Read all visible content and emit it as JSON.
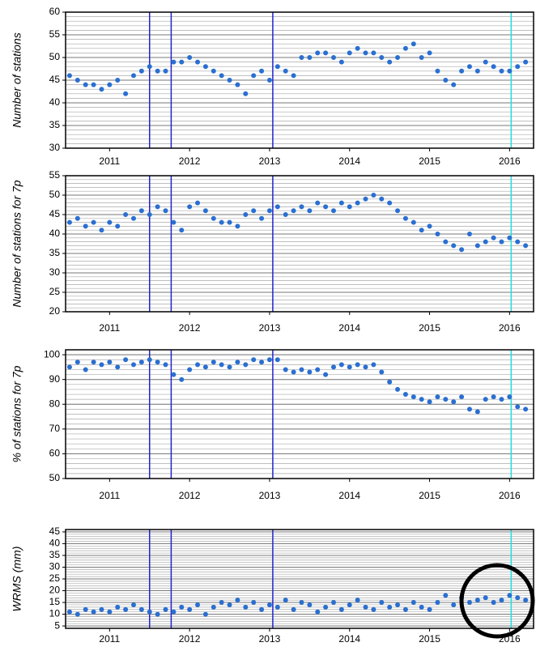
{
  "chart_data": [
    {
      "type": "scatter",
      "ylabel": "Number of stations",
      "color": "#2a6fd1",
      "x": [
        2011.0,
        2011.1,
        2011.2,
        2011.3,
        2011.4,
        2011.5,
        2011.6,
        2011.7,
        2011.8,
        2011.9,
        2012.0,
        2012.1,
        2012.2,
        2012.3,
        2012.4,
        2012.5,
        2012.6,
        2012.7,
        2012.8,
        2012.9,
        2013.0,
        2013.1,
        2013.2,
        2013.3,
        2013.4,
        2013.5,
        2013.6,
        2013.7,
        2013.8,
        2013.9,
        2014.0,
        2014.1,
        2014.2,
        2014.3,
        2014.4,
        2014.5,
        2014.6,
        2014.7,
        2014.8,
        2014.9,
        2015.0,
        2015.1,
        2015.2,
        2015.3,
        2015.4,
        2015.5,
        2015.6,
        2015.7,
        2015.8,
        2015.9,
        2016.0,
        2016.1,
        2016.2,
        2016.3,
        2016.4,
        2016.5,
        2016.6,
        2016.7
      ],
      "values": [
        46,
        45,
        44,
        44,
        43,
        44,
        45,
        42,
        46,
        47,
        48,
        47,
        47,
        49,
        49,
        50,
        49,
        48,
        47,
        46,
        45,
        44,
        42,
        46,
        47,
        45,
        48,
        47,
        46,
        50,
        50,
        51,
        51,
        50,
        49,
        51,
        52,
        51,
        51,
        50,
        49,
        50,
        52,
        53,
        50,
        51,
        47,
        45,
        44,
        47,
        48,
        47,
        49,
        48,
        47,
        47,
        48,
        49
      ],
      "xlim": [
        2010.95,
        2016.8
      ],
      "xticks": [
        {
          "value": 2011.5,
          "label": "2011"
        },
        {
          "value": 2012.5,
          "label": "2012"
        },
        {
          "value": 2013.5,
          "label": "2013"
        },
        {
          "value": 2014.5,
          "label": "2014"
        },
        {
          "value": 2015.5,
          "label": "2015"
        },
        {
          "value": 2016.5,
          "label": "2016"
        }
      ],
      "ylim": [
        30,
        60
      ],
      "yticks": [
        30,
        35,
        40,
        45,
        50,
        55,
        60
      ],
      "minor_grid_step": 1,
      "markers": [
        {
          "x": 2012.0,
          "color": "#2222cc"
        },
        {
          "x": 2012.27,
          "color": "#2222cc"
        },
        {
          "x": 2013.54,
          "color": "#2222cc"
        },
        {
          "x": 2016.52,
          "color": "#22dddd"
        }
      ]
    },
    {
      "type": "scatter",
      "ylabel": "Number of stations for 7p",
      "color": "#2a6fd1",
      "x": [
        2011.0,
        2011.1,
        2011.2,
        2011.3,
        2011.4,
        2011.5,
        2011.6,
        2011.7,
        2011.8,
        2011.9,
        2012.0,
        2012.1,
        2012.2,
        2012.3,
        2012.4,
        2012.5,
        2012.6,
        2012.7,
        2012.8,
        2012.9,
        2013.0,
        2013.1,
        2013.2,
        2013.3,
        2013.4,
        2013.5,
        2013.6,
        2013.7,
        2013.8,
        2013.9,
        2014.0,
        2014.1,
        2014.2,
        2014.3,
        2014.4,
        2014.5,
        2014.6,
        2014.7,
        2014.8,
        2014.9,
        2015.0,
        2015.1,
        2015.2,
        2015.3,
        2015.4,
        2015.5,
        2015.6,
        2015.7,
        2015.8,
        2015.9,
        2016.0,
        2016.1,
        2016.2,
        2016.3,
        2016.4,
        2016.5,
        2016.6,
        2016.7
      ],
      "values": [
        43,
        44,
        42,
        43,
        41,
        43,
        42,
        45,
        44,
        46,
        45,
        47,
        46,
        43,
        41,
        47,
        48,
        46,
        44,
        43,
        43,
        42,
        45,
        46,
        44,
        46,
        47,
        45,
        46,
        47,
        46,
        48,
        47,
        46,
        48,
        47,
        48,
        49,
        50,
        49,
        48,
        46,
        44,
        43,
        41,
        42,
        40,
        38,
        37,
        36,
        40,
        37,
        38,
        39,
        38,
        39,
        38,
        37
      ],
      "xlim": [
        2010.95,
        2016.8
      ],
      "xticks": [
        {
          "value": 2011.5,
          "label": "2011"
        },
        {
          "value": 2012.5,
          "label": "2012"
        },
        {
          "value": 2013.5,
          "label": "2013"
        },
        {
          "value": 2014.5,
          "label": "2014"
        },
        {
          "value": 2015.5,
          "label": "2015"
        },
        {
          "value": 2016.5,
          "label": "2016"
        }
      ],
      "ylim": [
        20,
        55
      ],
      "yticks": [
        20,
        25,
        30,
        35,
        40,
        45,
        50,
        55
      ],
      "minor_grid_step": 1,
      "markers": [
        {
          "x": 2012.0,
          "color": "#2222cc"
        },
        {
          "x": 2012.27,
          "color": "#2222cc"
        },
        {
          "x": 2013.54,
          "color": "#2222cc"
        },
        {
          "x": 2016.52,
          "color": "#22dddd"
        }
      ]
    },
    {
      "type": "scatter",
      "ylabel": "% of stations for 7p",
      "color": "#2a6fd1",
      "x": [
        2011.0,
        2011.1,
        2011.2,
        2011.3,
        2011.4,
        2011.5,
        2011.6,
        2011.7,
        2011.8,
        2011.9,
        2012.0,
        2012.1,
        2012.2,
        2012.3,
        2012.4,
        2012.5,
        2012.6,
        2012.7,
        2012.8,
        2012.9,
        2013.0,
        2013.1,
        2013.2,
        2013.3,
        2013.4,
        2013.5,
        2013.6,
        2013.7,
        2013.8,
        2013.9,
        2014.0,
        2014.1,
        2014.2,
        2014.3,
        2014.4,
        2014.5,
        2014.6,
        2014.7,
        2014.8,
        2014.9,
        2015.0,
        2015.1,
        2015.2,
        2015.3,
        2015.4,
        2015.5,
        2015.6,
        2015.7,
        2015.8,
        2015.9,
        2016.0,
        2016.1,
        2016.2,
        2016.3,
        2016.4,
        2016.5,
        2016.6,
        2016.7
      ],
      "values": [
        95,
        97,
        94,
        97,
        96,
        97,
        95,
        98,
        96,
        97,
        98,
        97,
        96,
        92,
        90,
        94,
        96,
        95,
        97,
        96,
        95,
        97,
        96,
        98,
        97,
        98,
        98,
        94,
        93,
        94,
        93,
        94,
        92,
        95,
        96,
        95,
        96,
        95,
        96,
        93,
        89,
        86,
        84,
        83,
        82,
        81,
        83,
        82,
        81,
        83,
        78,
        77,
        82,
        83,
        82,
        83,
        79,
        78
      ],
      "xlim": [
        2010.95,
        2016.8
      ],
      "xticks": [
        {
          "value": 2011.5,
          "label": "2011"
        },
        {
          "value": 2012.5,
          "label": "2012"
        },
        {
          "value": 2013.5,
          "label": "2013"
        },
        {
          "value": 2014.5,
          "label": "2014"
        },
        {
          "value": 2015.5,
          "label": "2015"
        },
        {
          "value": 2016.5,
          "label": "2016"
        }
      ],
      "ylim": [
        50,
        102
      ],
      "yticks": [
        50,
        60,
        70,
        80,
        90,
        100
      ],
      "minor_grid_step": 2,
      "markers": [
        {
          "x": 2012.0,
          "color": "#2222cc"
        },
        {
          "x": 2012.27,
          "color": "#2222cc"
        },
        {
          "x": 2013.54,
          "color": "#2222cc"
        },
        {
          "x": 2016.52,
          "color": "#22dddd"
        }
      ]
    },
    {
      "type": "scatter",
      "ylabel": "WRMS (mm)",
      "color": "#2a6fd1",
      "x": [
        2011.0,
        2011.1,
        2011.2,
        2011.3,
        2011.4,
        2011.5,
        2011.6,
        2011.7,
        2011.8,
        2011.9,
        2012.0,
        2012.1,
        2012.2,
        2012.3,
        2012.4,
        2012.5,
        2012.6,
        2012.7,
        2012.8,
        2012.9,
        2013.0,
        2013.1,
        2013.2,
        2013.3,
        2013.4,
        2013.5,
        2013.6,
        2013.7,
        2013.8,
        2013.9,
        2014.0,
        2014.1,
        2014.2,
        2014.3,
        2014.4,
        2014.5,
        2014.6,
        2014.7,
        2014.8,
        2014.9,
        2015.0,
        2015.1,
        2015.2,
        2015.3,
        2015.4,
        2015.5,
        2015.6,
        2015.7,
        2015.8,
        2015.9,
        2016.0,
        2016.1,
        2016.2,
        2016.3,
        2016.4,
        2016.5,
        2016.6,
        2016.7
      ],
      "values": [
        11,
        10,
        12,
        11,
        12,
        11,
        13,
        12,
        14,
        12,
        11,
        10,
        12,
        11,
        13,
        12,
        14,
        10,
        13,
        15,
        14,
        16,
        13,
        15,
        12,
        14,
        13,
        16,
        12,
        15,
        14,
        11,
        13,
        15,
        12,
        14,
        16,
        13,
        12,
        15,
        13,
        14,
        12,
        15,
        13,
        12,
        15,
        18,
        14,
        17,
        15,
        16,
        17,
        15,
        16,
        18,
        17,
        16
      ],
      "xlim": [
        2010.95,
        2016.8
      ],
      "xticks": [
        {
          "value": 2011.5,
          "label": "2011"
        },
        {
          "value": 2012.5,
          "label": "2012"
        },
        {
          "value": 2013.5,
          "label": "2013"
        },
        {
          "value": 2014.5,
          "label": "2014"
        },
        {
          "value": 2015.5,
          "label": "2015"
        },
        {
          "value": 2016.5,
          "label": "2016"
        }
      ],
      "ylim": [
        4,
        46
      ],
      "yticks": [
        5,
        10,
        15,
        20,
        25,
        30,
        35,
        40,
        45
      ],
      "minor_grid_step": 1,
      "markers": [
        {
          "x": 2012.0,
          "color": "#2222cc"
        },
        {
          "x": 2012.27,
          "color": "#2222cc"
        },
        {
          "x": 2013.54,
          "color": "#2222cc"
        },
        {
          "x": 2016.52,
          "color": "#22dddd"
        }
      ]
    }
  ]
}
